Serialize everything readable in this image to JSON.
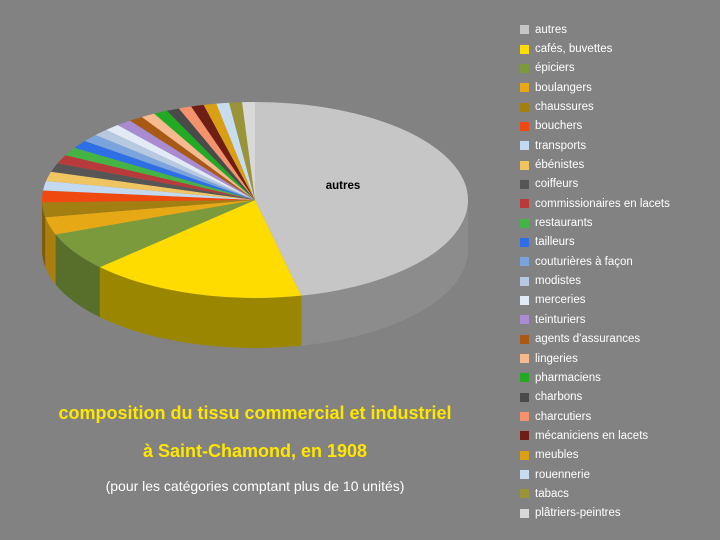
{
  "chart_data": {
    "type": "pie",
    "style": "3d",
    "title_line1": "composition du tissu commercial et industriel",
    "title_line2": "à Saint-Chamond, en 1908",
    "subtitle": "(pour les catégories comptant plus de 10 unités)",
    "legend_position": "right",
    "slice_label": "autres",
    "categories": [
      "autres",
      "cafés, buvettes",
      "épiciers",
      "boulangers",
      "chaussures",
      "bouchers",
      "transports",
      "ébénistes",
      "coiffeurs",
      "commissionaires en lacets",
      "restaurants",
      "tailleurs",
      "couturières à façon",
      "modistes",
      "merceries",
      "teinturiers",
      "agents d'assurances",
      "lingeries",
      "pharmaciens",
      "charbons",
      "charcutiers",
      "mécaniciens en lacets",
      "meubles",
      "rouennerie",
      "tabacs",
      "plâtriers-peintres"
    ],
    "values": [
      48,
      17,
      6.5,
      3,
      2.5,
      2,
      1.6,
      1.6,
      1.5,
      1.5,
      1.4,
      1.4,
      1.3,
      1.2,
      1.2,
      1.2,
      1.1,
      1.1,
      1.1,
      1.0,
      1.0,
      1.0,
      1.0,
      1.0,
      1.0,
      1.0
    ],
    "colors": [
      "#c6c6c6",
      "#ffdc00",
      "#7a9a3c",
      "#e6a915",
      "#a37e10",
      "#f0490f",
      "#c3d9ef",
      "#efc561",
      "#565656",
      "#b83a3a",
      "#44b444",
      "#2f6fe5",
      "#7ba4dd",
      "#b7c9e0",
      "#e2ebf5",
      "#a88bd0",
      "#a85a15",
      "#f7b98f",
      "#22aa22",
      "#4a4a4a",
      "#f4936b",
      "#6e1e14",
      "#d9a014",
      "#c8dcf0",
      "#9a9438",
      "#d8d8d8"
    ]
  }
}
